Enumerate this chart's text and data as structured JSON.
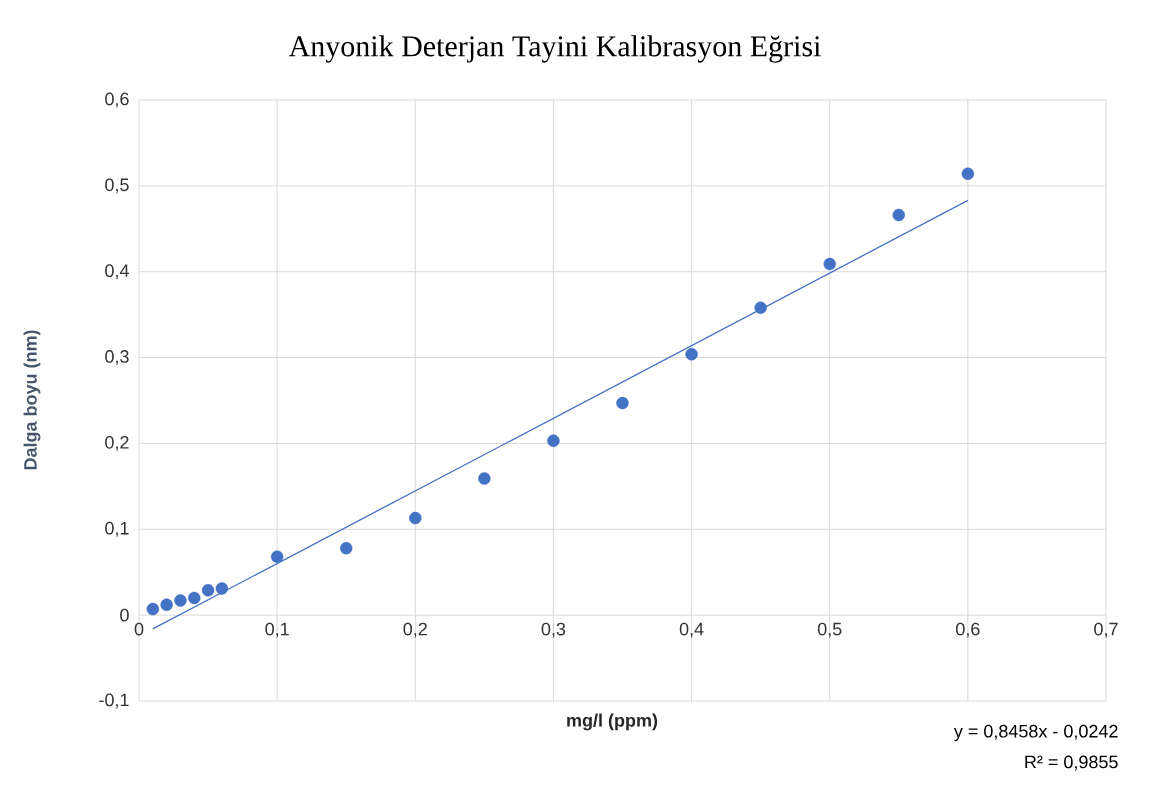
{
  "chart_data": {
    "type": "scatter",
    "title": "Anyonik Deterjan Tayini Kalibrasyon Eğrisi",
    "xlabel": "mg/l (ppm)",
    "ylabel": "Dalga boyu (nm)",
    "x": [
      0.01,
      0.02,
      0.03,
      0.04,
      0.05,
      0.06,
      0.1,
      0.15,
      0.2,
      0.25,
      0.3,
      0.35,
      0.4,
      0.45,
      0.5,
      0.55,
      0.6
    ],
    "series": [
      {
        "color": "#4472c4",
        "values": [
          0.007,
          0.012,
          0.017,
          0.02,
          0.029,
          0.031,
          0.068,
          0.078,
          0.113,
          0.159,
          0.203,
          0.247,
          0.304,
          0.358,
          0.409,
          0.466,
          0.514
        ]
      },
      {
        "type": "line",
        "color": "#4472c4",
        "marker": "none",
        "x": [
          0.01,
          0.6
        ],
        "values": [
          -0.016,
          0.483
        ]
      }
    ],
    "xlim": [
      0,
      0.7
    ],
    "ylim": [
      -0.1,
      0.6
    ],
    "xticks": [
      0,
      {
        "value": 0.1,
        "label": "0,1"
      },
      {
        "value": 0.2,
        "label": "0,2"
      },
      {
        "value": 0.3,
        "label": "0,3"
      },
      {
        "value": 0.4,
        "label": "0,4"
      },
      {
        "value": 0.5,
        "label": "0,5"
      },
      {
        "value": 0.6,
        "label": "0,6"
      },
      {
        "value": 0.7,
        "label": "0,7"
      }
    ],
    "yticks": [
      {
        "value": -0.1,
        "label": "-0,1"
      },
      0,
      {
        "value": 0.1,
        "label": "0,1"
      },
      {
        "value": 0.2,
        "label": "0,2"
      },
      {
        "value": 0.3,
        "label": "0,3"
      },
      {
        "value": 0.4,
        "label": "0,4"
      },
      {
        "value": 0.5,
        "label": "0,5"
      },
      {
        "value": 0.6,
        "label": "0,6"
      }
    ],
    "grid": true,
    "marker": "circle",
    "annotations": [
      "y = 0,8458x - 0,0242",
      "R² = 0,9855"
    ]
  }
}
